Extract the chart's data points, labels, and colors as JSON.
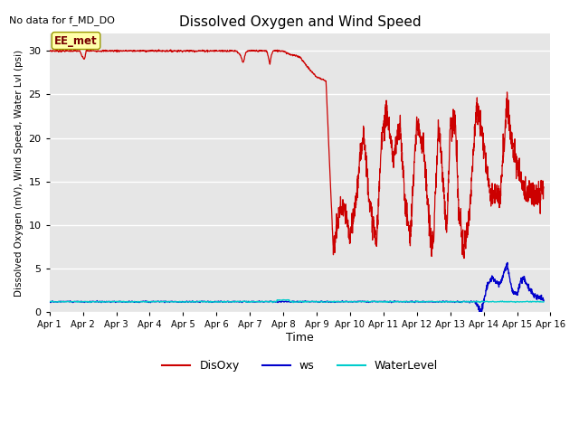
{
  "title": "Dissolved Oxygen and Wind Speed",
  "top_left_text": "No data for f_MD_DO",
  "ylabel": "Dissolved Oxygen (mV), Wind Speed, Water Lvl (psi)",
  "xlabel": "Time",
  "annotation_text": "EE_met",
  "bg_color": "#e6e6e6",
  "disoxy_color": "#cc0000",
  "ws_color": "#0000cc",
  "waterlevel_color": "#00cccc",
  "legend_labels": [
    "DisOxy",
    "ws",
    "WaterLevel"
  ],
  "ylim": [
    0,
    32
  ],
  "yticks": [
    0,
    5,
    10,
    15,
    20,
    25,
    30
  ],
  "xtick_labels": [
    "Apr 1",
    "Apr 2",
    "Apr 3",
    "Apr 4",
    "Apr 5",
    "Apr 6",
    "Apr 7",
    "Apr 8",
    "Apr 9",
    "Apr 10",
    "Apr 11",
    "Apr 12",
    "Apr 13",
    "Apr 14",
    "Apr 15",
    "Apr 16"
  ]
}
